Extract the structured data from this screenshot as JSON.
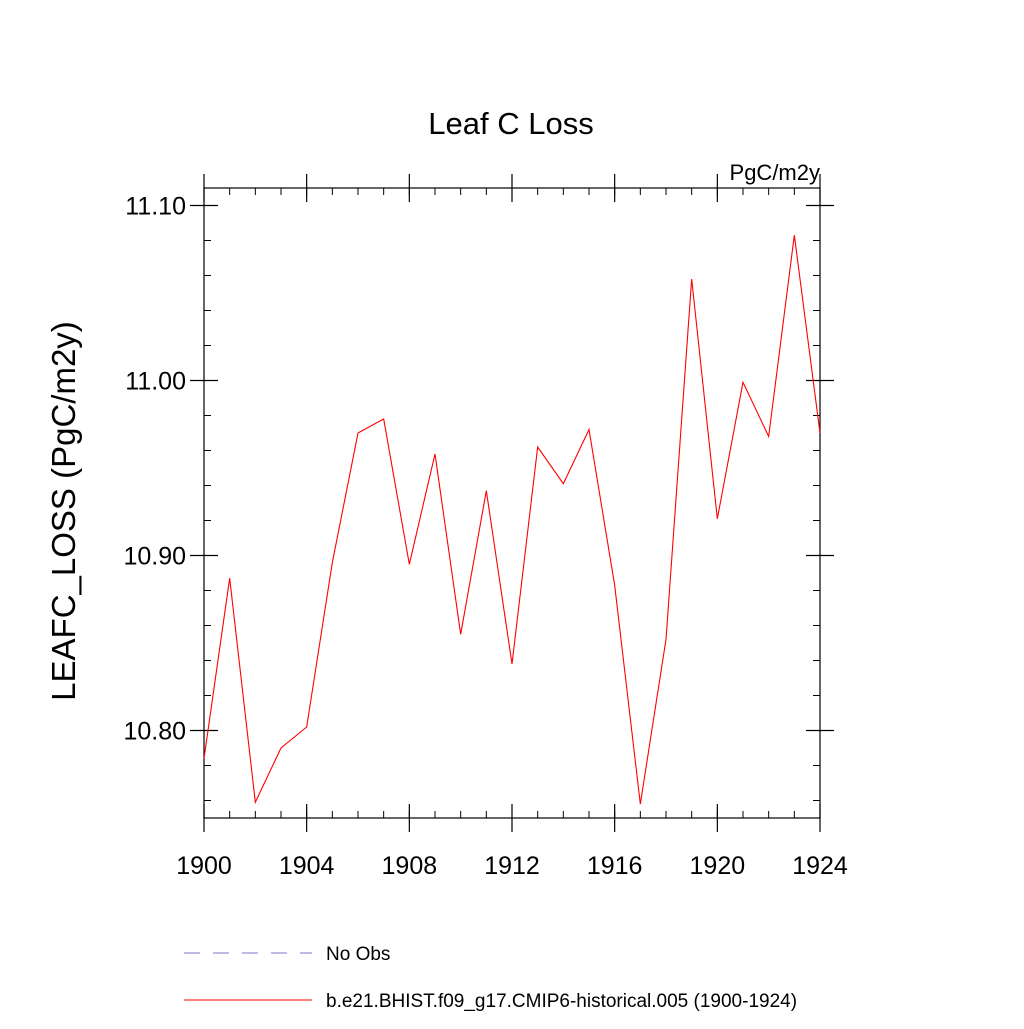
{
  "chart_data": {
    "type": "line",
    "title": "Leaf C Loss",
    "units_label": "PgC/m2y",
    "ylabel": "LEAFC_LOSS  (PgC/m2y)",
    "xlabel": "",
    "xlim": [
      1900,
      1924
    ],
    "ylim": [
      10.75,
      11.11
    ],
    "x_ticks": [
      1900,
      1904,
      1908,
      1912,
      1916,
      1920,
      1924
    ],
    "x_tick_labels": [
      "1900",
      "1904",
      "1908",
      "1912",
      "1916",
      "1920",
      "1924"
    ],
    "y_ticks": [
      10.8,
      10.9,
      11.0,
      11.1
    ],
    "y_tick_labels": [
      "10.80",
      "10.90",
      "11.00",
      "11.10"
    ],
    "y_minor_step": 0.02,
    "x_minor_step": 1,
    "grid": false,
    "legend_position": "bottom",
    "series": [
      {
        "name": "b.e21.BHIST.f09_g17.CMIP6-historical.005 (1900-1924)",
        "color": "#ff0000",
        "style": "solid",
        "x": [
          1900,
          1901,
          1902,
          1903,
          1904,
          1905,
          1906,
          1907,
          1908,
          1909,
          1910,
          1911,
          1912,
          1913,
          1914,
          1915,
          1916,
          1917,
          1918,
          1919,
          1920,
          1921,
          1922,
          1923,
          1924
        ],
        "values": [
          10.784,
          10.887,
          10.759,
          10.79,
          10.802,
          10.896,
          10.97,
          10.978,
          10.895,
          10.958,
          10.855,
          10.937,
          10.838,
          10.962,
          10.941,
          10.972,
          10.883,
          10.758,
          10.852,
          11.058,
          10.921,
          10.999,
          10.968,
          11.083,
          10.97
        ]
      }
    ],
    "legend": [
      {
        "label": "No Obs",
        "color": "#7777cc",
        "style": "dashed"
      },
      {
        "label": "b.e21.BHIST.f09_g17.CMIP6-historical.005 (1900-1924)",
        "color": "#ff0000",
        "style": "solid"
      }
    ]
  }
}
